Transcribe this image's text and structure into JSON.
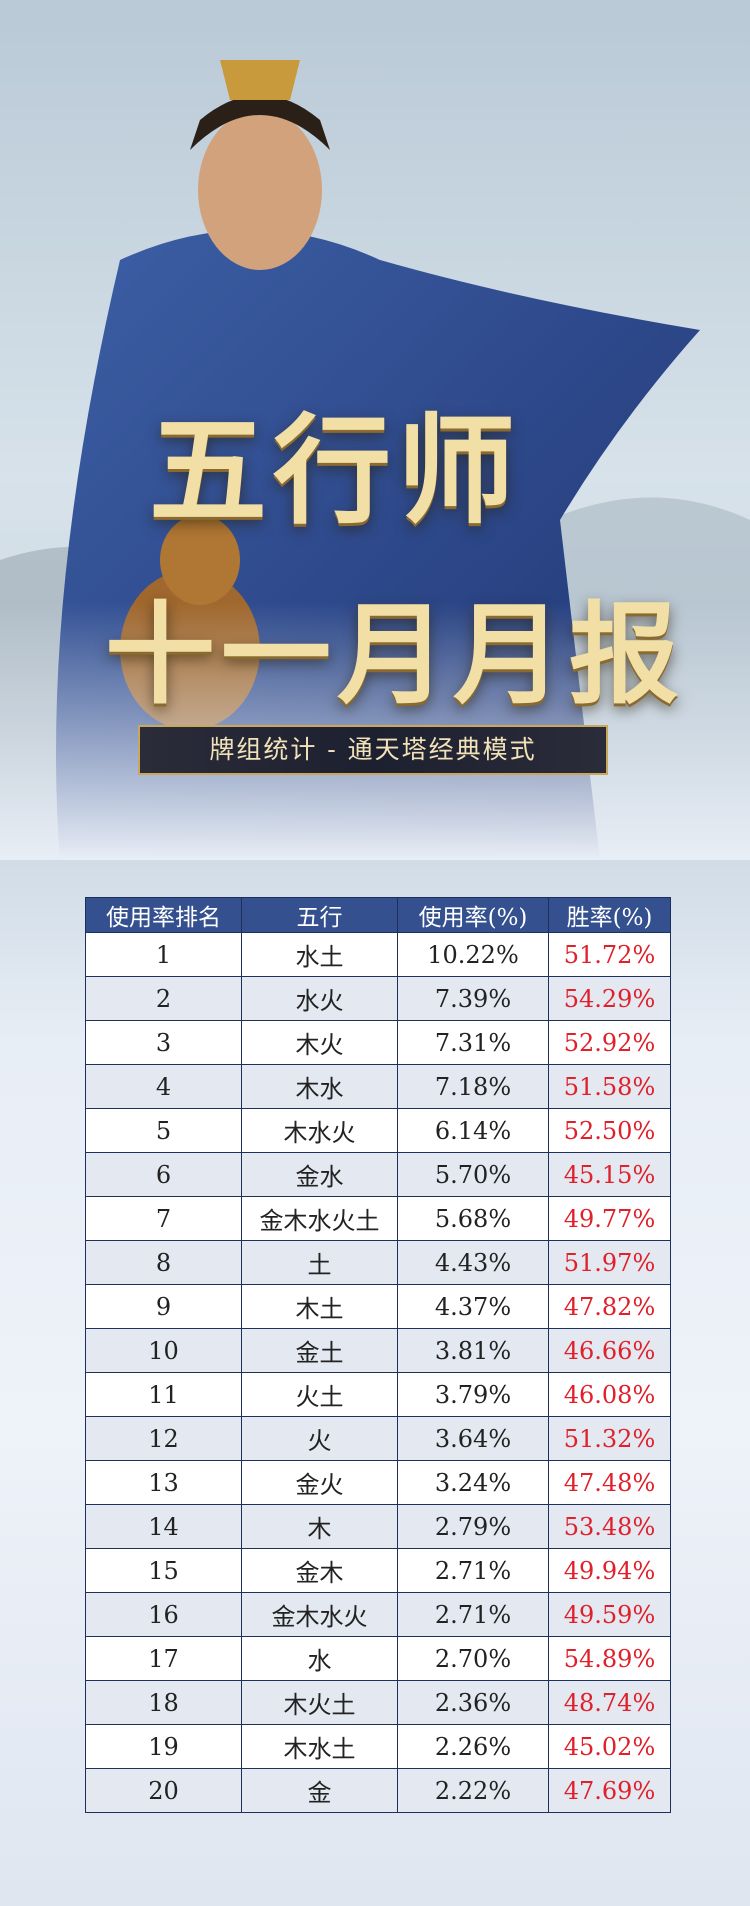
{
  "header": {
    "title_line1": "五行师",
    "title_line2": "十一月月报",
    "subtitle": "牌组统计 - 通天塔经典模式"
  },
  "table": {
    "columns": [
      "使用率排名",
      "五行",
      "使用率(%)",
      "胜率(%)"
    ],
    "rows": [
      [
        1,
        "水土",
        "10.22%",
        "51.72%"
      ],
      [
        2,
        "水火",
        "7.39%",
        "54.29%"
      ],
      [
        3,
        "木火",
        "7.31%",
        "52.92%"
      ],
      [
        4,
        "木水",
        "7.18%",
        "51.58%"
      ],
      [
        5,
        "木水火",
        "6.14%",
        "52.50%"
      ],
      [
        6,
        "金水",
        "5.70%",
        "45.15%"
      ],
      [
        7,
        "金木水火土",
        "5.68%",
        "49.77%"
      ],
      [
        8,
        "土",
        "4.43%",
        "51.97%"
      ],
      [
        9,
        "木土",
        "4.37%",
        "47.82%"
      ],
      [
        10,
        "金土",
        "3.81%",
        "46.66%"
      ],
      [
        11,
        "火土",
        "3.79%",
        "46.08%"
      ],
      [
        12,
        "火",
        "3.64%",
        "51.32%"
      ],
      [
        13,
        "金火",
        "3.24%",
        "47.48%"
      ],
      [
        14,
        "木",
        "2.79%",
        "53.48%"
      ],
      [
        15,
        "金木",
        "2.71%",
        "49.94%"
      ],
      [
        16,
        "金木水火",
        "2.71%",
        "49.59%"
      ],
      [
        17,
        "水",
        "2.70%",
        "54.89%"
      ],
      [
        18,
        "木火土",
        "2.36%",
        "48.74%"
      ],
      [
        19,
        "木水土",
        "2.26%",
        "45.02%"
      ],
      [
        20,
        "金",
        "2.22%",
        "47.69%"
      ]
    ]
  }
}
